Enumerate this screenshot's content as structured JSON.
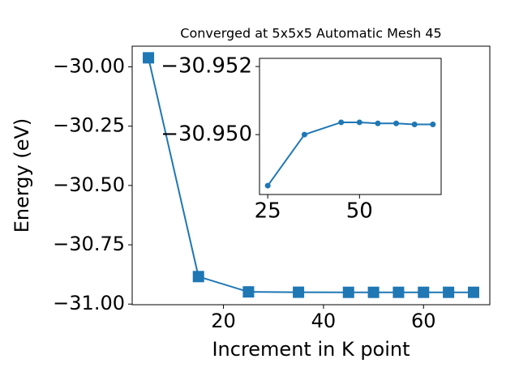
{
  "chart_data": [
    {
      "type": "line",
      "title": "Converged at 5x5x5 Automatic Mesh 45",
      "x_label": "Increment in K point",
      "y_label": "Energy (eV)",
      "x": [
        5,
        15,
        25,
        35,
        45,
        50,
        55,
        60,
        65,
        70
      ],
      "series": [
        {
          "color": "#1f77b4",
          "marker": "square",
          "values": [
            -29.962,
            -30.884,
            -30.9485,
            -30.95,
            -30.9504,
            -30.9504,
            -30.9503,
            -30.9503,
            -30.9503,
            -30.9503
          ]
        }
      ],
      "xlim": [
        1.75,
        73.25
      ],
      "ylim": [
        -31.0026,
        -29.913
      ],
      "xticks": [
        20,
        40,
        60
      ],
      "yticks": [
        {
          "value": -31.0,
          "label": "−31.00"
        },
        {
          "value": -30.75,
          "label": "−30.75"
        },
        {
          "value": -30.5,
          "label": "−30.50"
        },
        {
          "value": -30.25,
          "label": "−30.25"
        },
        {
          "value": -30.0,
          "label": "−30.00"
        }
      ]
    },
    {
      "type": "line",
      "x": [
        25,
        35,
        45,
        50,
        55,
        60,
        65,
        70
      ],
      "series": [
        {
          "color": "#1f77b4",
          "marker": "circle",
          "values": [
            -30.9485,
            -30.95,
            -30.95036,
            -30.95036,
            -30.95033,
            -30.95033,
            -30.9503,
            -30.9503
          ]
        }
      ],
      "xlim": [
        22.75,
        72.25
      ],
      "ylim": [
        -30.94824,
        -30.95224
      ],
      "xticks": [
        25,
        50
      ],
      "yticks": [
        {
          "value": -30.952,
          "label": "−30.952"
        },
        {
          "value": -30.95,
          "label": "−30.950"
        }
      ]
    }
  ]
}
